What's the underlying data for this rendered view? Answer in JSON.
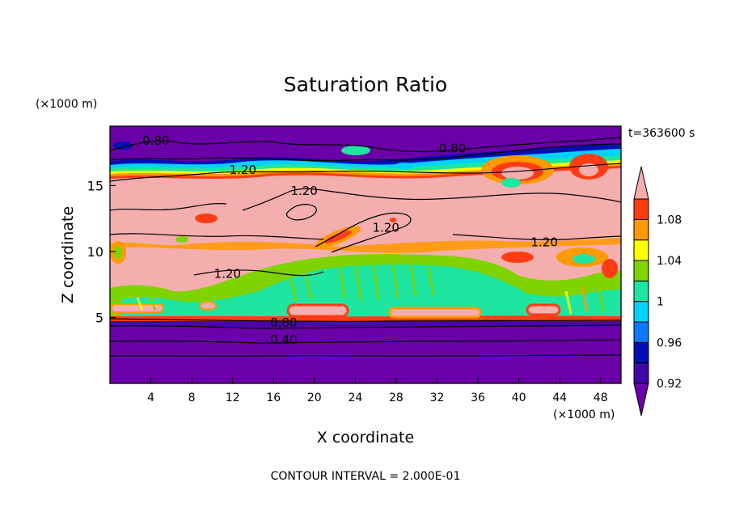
{
  "chart_data": {
    "type": "heatmap",
    "title": "Saturation Ratio",
    "xlabel": "X coordinate",
    "ylabel": "Z coordinate",
    "x_units": "(×1000 m)",
    "y_units": "(×1000 m)",
    "time_label": "t=363600 s",
    "footer": "CONTOUR INTERVAL = 2.000E-01",
    "xlim": [
      0,
      50
    ],
    "ylim": [
      0,
      19.5
    ],
    "x_ticks": [
      4,
      8,
      12,
      16,
      20,
      24,
      28,
      32,
      36,
      40,
      44,
      48
    ],
    "y_ticks": [
      5,
      10,
      15
    ],
    "colorbar": {
      "levels": [
        0.92,
        0.94,
        0.96,
        0.98,
        1.0,
        1.02,
        1.04,
        1.06,
        1.08,
        1.1
      ],
      "labels": [
        "0.92",
        "0.96",
        "1",
        "1.04",
        "1.08"
      ],
      "label_values": [
        0.92,
        0.96,
        1.0,
        1.04,
        1.08
      ],
      "colors": [
        "#6a00a8",
        "#3d0aa8",
        "#0010b4",
        "#0a78ff",
        "#00d2ff",
        "#1ee6a0",
        "#7fd400",
        "#ffff00",
        "#ff9900",
        "#ff3c14",
        "#f4aeae"
      ]
    },
    "contour_labels": [
      {
        "text": "0.80",
        "x": 4.5,
        "z": 18.4
      },
      {
        "text": "0.80",
        "x": 33.5,
        "z": 17.8
      },
      {
        "text": "1.20",
        "x": 13,
        "z": 16.2
      },
      {
        "text": "1.20",
        "x": 19,
        "z": 14.6
      },
      {
        "text": "1.20",
        "x": 27,
        "z": 11.8
      },
      {
        "text": "1.20",
        "x": 42.5,
        "z": 10.7
      },
      {
        "text": "1.20",
        "x": 11.5,
        "z": 8.3
      },
      {
        "text": "0.80",
        "x": 17,
        "z": 4.6
      },
      {
        "text": "0.40",
        "x": 17,
        "z": 3.3
      }
    ]
  }
}
